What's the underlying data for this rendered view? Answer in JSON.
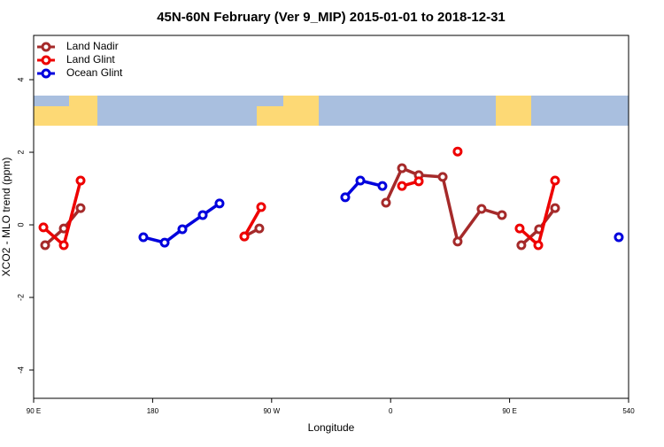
{
  "chart_data": {
    "type": "line",
    "title": "45N-60N February (Ver 9_MIP)   2015-01-01 to 2018-12-31",
    "x_label": "Longitude",
    "y_label": "XCO2 - MLO trend (ppm)",
    "xlim": [
      90,
      540
    ],
    "ylim": [
      -4.78,
      5.22
    ],
    "xticks": [
      {
        "value": 90,
        "label": "90 E"
      },
      180,
      {
        "value": 270,
        "label": "90 W"
      },
      {
        "value": 360,
        "label": "0"
      },
      {
        "value": 450,
        "label": "90 E"
      },
      540
    ],
    "yticks": [
      -4,
      -2,
      0,
      2,
      4
    ],
    "legend": "top-left",
    "series": [
      {
        "name": "Land Nadir",
        "color": "#a52a2a",
        "x": [
          98.7,
          112.8,
          125.5,
          null,
          249.4,
          260.7,
          null,
          356.5,
          368.6,
          381.3,
          399.4,
          410.7,
          428.8,
          444.2,
          null,
          458.9,
          472.3,
          484.4
        ],
        "values": [
          -0.56,
          -0.1,
          0.46,
          null,
          -0.32,
          -0.1,
          null,
          0.61,
          1.56,
          1.37,
          1.32,
          -0.46,
          0.44,
          0.27,
          null,
          -0.56,
          -0.12,
          0.46
        ]
      },
      {
        "name": "Land Glint",
        "color": "#ee0000",
        "x": [
          97.4,
          112.8,
          125.5,
          null,
          249.4,
          262.1,
          null,
          368.6,
          381.3,
          null,
          410.7,
          null,
          457.6,
          471.7,
          484.4
        ],
        "values": [
          -0.07,
          -0.56,
          1.22,
          null,
          -0.32,
          0.49,
          null,
          1.07,
          1.2,
          null,
          2.02,
          null,
          -0.1,
          -0.56,
          1.22
        ]
      },
      {
        "name": "Ocean Glint",
        "color": "#0000dd",
        "x": [
          173.0,
          189.1,
          202.5,
          217.9,
          230.6,
          null,
          325.7,
          337.1,
          353.8,
          null,
          532.6
        ],
        "values": [
          -0.34,
          -0.49,
          -0.12,
          0.27,
          0.59,
          null,
          0.76,
          1.22,
          1.07,
          null,
          -0.34
        ]
      }
    ]
  }
}
